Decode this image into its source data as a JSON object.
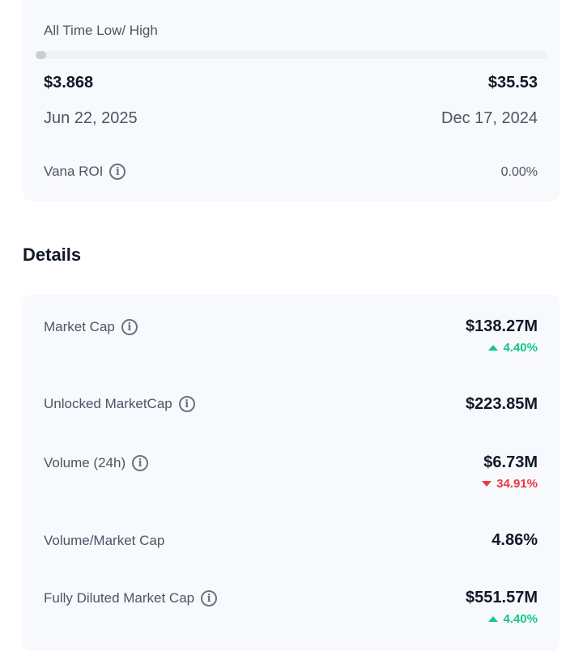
{
  "range": {
    "title": "All Time Low/ High",
    "progress_fraction": 0.02,
    "low_value": "$3.868",
    "high_value": "$35.53",
    "low_date": "Jun 22, 2025",
    "high_date": "Dec 17, 2024",
    "roi_label": "Vana ROI",
    "roi_value": "0.00%"
  },
  "details": {
    "heading": "Details",
    "rows": [
      {
        "label": "Market Cap",
        "value": "$138.27M",
        "change": "4.40%",
        "direction": "up"
      },
      {
        "label": "Unlocked MarketCap",
        "value": "$223.85M"
      },
      {
        "label": "Volume (24h)",
        "value": "$6.73M",
        "change": "34.91%",
        "direction": "down"
      },
      {
        "label": "Volume/Market Cap",
        "value": "4.86%"
      },
      {
        "label": "Fully Diluted Market Cap",
        "value": "$551.57M",
        "change": "4.40%",
        "direction": "up"
      }
    ]
  },
  "icons": {
    "info": "info-circle-icon"
  },
  "colors": {
    "up": "#16c784",
    "down": "#ea3943",
    "card_bg": "#f7f9fc"
  }
}
